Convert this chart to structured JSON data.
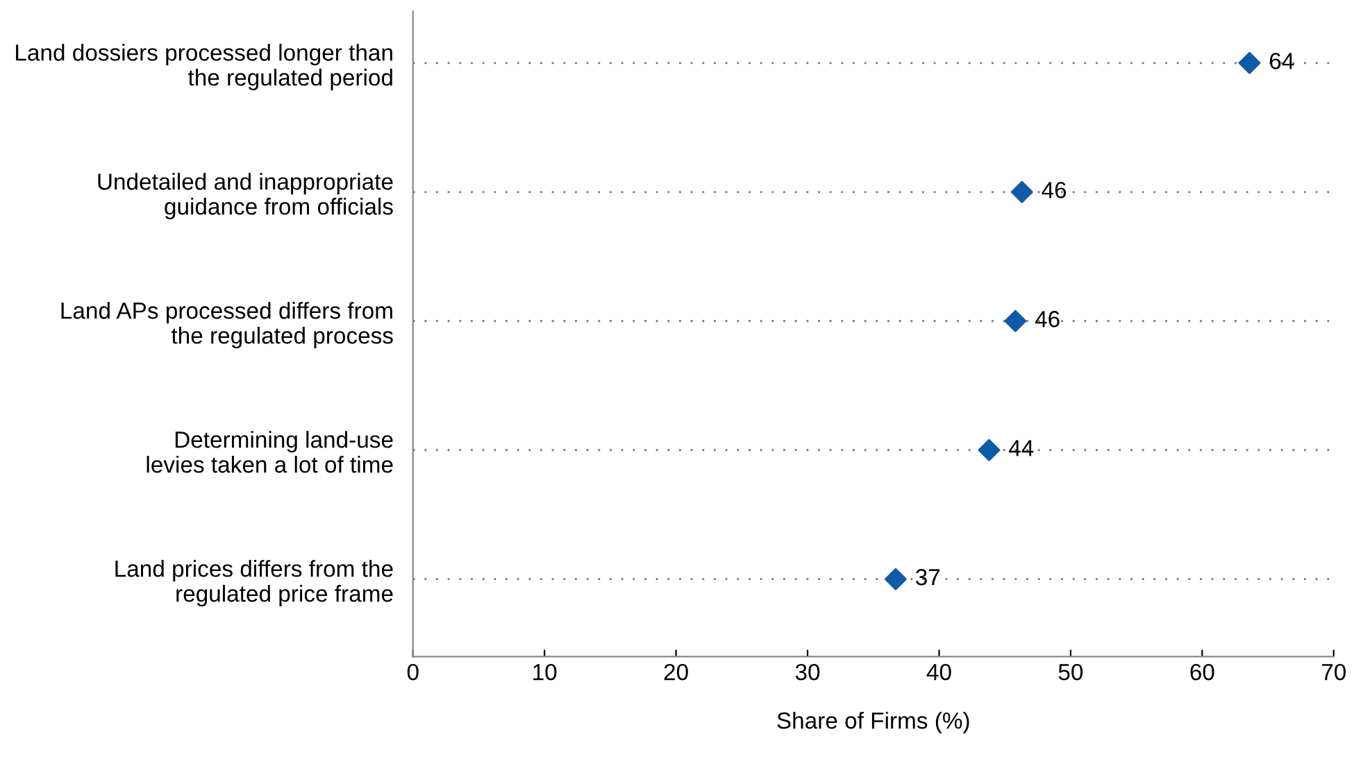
{
  "chart_data": {
    "type": "scatter",
    "orientation": "horizontal",
    "xlabel": "Share of Firms (%)",
    "categories": [
      "Land dossiers processed longer than\nthe regulated period",
      "Undetailed and inappropriate\nguidance from officials",
      "Land APs processed differs from\nthe regulated process",
      "Determining land-use\nlevies taken a lot of time",
      "Land prices differs from the\nregulated price frame"
    ],
    "series": [
      {
        "color": "#0f5ba7",
        "values": [
          63.6,
          46.3,
          45.8,
          43.8,
          36.7
        ],
        "value_labels": [
          "64",
          "46",
          "46",
          "44",
          "37"
        ]
      }
    ],
    "marker": "diamond",
    "xlim": [
      0,
      70
    ],
    "xticks": [
      0,
      10,
      20,
      30,
      40,
      50,
      60,
      70
    ],
    "grid": "y",
    "legend": false
  }
}
